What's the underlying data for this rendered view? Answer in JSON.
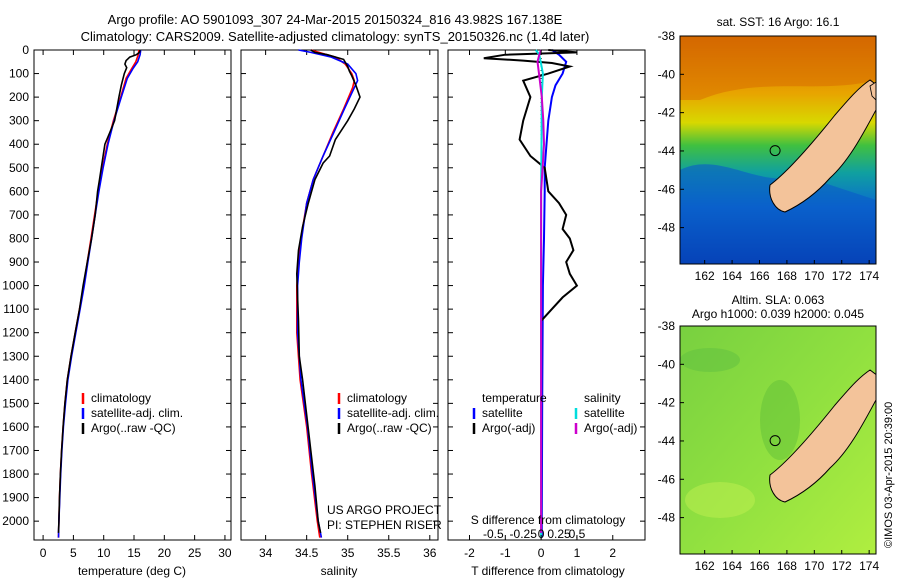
{
  "header": {
    "line1": "Argo profile: AO 5901093_307 24-Mar-2015 20150324_816 43.982S 167.138E",
    "line2": "Climatology: CARS2009. Satellite-adjusted climatology: synTS_20150326.nc (1.4d later)"
  },
  "chart_data": [
    {
      "type": "line",
      "id": "temperature",
      "xlabel": "temperature (deg C)",
      "xlim": [
        -1.5,
        31
      ],
      "xticks": [
        0,
        5,
        10,
        15,
        20,
        25,
        30
      ],
      "ylim": [
        0,
        2080
      ],
      "yticks": [
        0,
        100,
        200,
        300,
        400,
        500,
        600,
        700,
        800,
        900,
        1000,
        1100,
        1200,
        1300,
        1400,
        1500,
        1600,
        1700,
        1800,
        1900,
        2000
      ],
      "reversed_y": true,
      "legend": [
        "climatology",
        "satellite-adj. clim.",
        "Argo(..raw -QC)"
      ],
      "series": [
        {
          "name": "climatology",
          "color": "#ff0000",
          "points": [
            [
              15.8,
              0
            ],
            [
              15.7,
              20
            ],
            [
              15.3,
              50
            ],
            [
              14.6,
              80
            ],
            [
              13.7,
              120
            ],
            [
              12.8,
              200
            ],
            [
              11.6,
              300
            ],
            [
              10.6,
              400
            ],
            [
              9.8,
              500
            ],
            [
              9.1,
              600
            ],
            [
              8.5,
              700
            ],
            [
              7.9,
              800
            ],
            [
              7.3,
              900
            ],
            [
              6.7,
              1000
            ],
            [
              6.0,
              1100
            ],
            [
              5.3,
              1200
            ],
            [
              4.6,
              1300
            ],
            [
              4.0,
              1400
            ],
            [
              3.6,
              1500
            ],
            [
              3.3,
              1600
            ],
            [
              3.05,
              1700
            ],
            [
              2.85,
              1800
            ],
            [
              2.7,
              1900
            ],
            [
              2.6,
              2000
            ],
            [
              2.55,
              2070
            ]
          ]
        },
        {
          "name": "satellite-adj. clim.",
          "color": "#0000ff",
          "points": [
            [
              16.1,
              0
            ],
            [
              16.0,
              20
            ],
            [
              15.6,
              50
            ],
            [
              14.8,
              80
            ],
            [
              13.9,
              120
            ],
            [
              12.9,
              200
            ],
            [
              11.7,
              300
            ],
            [
              10.7,
              400
            ],
            [
              9.9,
              500
            ],
            [
              9.2,
              600
            ],
            [
              8.6,
              700
            ],
            [
              8.0,
              800
            ],
            [
              7.4,
              900
            ],
            [
              6.8,
              1000
            ],
            [
              6.1,
              1100
            ],
            [
              5.4,
              1200
            ],
            [
              4.7,
              1300
            ],
            [
              4.1,
              1400
            ],
            [
              3.7,
              1500
            ],
            [
              3.35,
              1600
            ],
            [
              3.1,
              1700
            ],
            [
              2.9,
              1800
            ],
            [
              2.75,
              1900
            ],
            [
              2.6,
              2000
            ],
            [
              2.55,
              2070
            ]
          ]
        },
        {
          "name": "Argo(..raw -QC)",
          "color": "#000000",
          "points": [
            [
              16.0,
              0
            ],
            [
              15.9,
              10
            ],
            [
              15.4,
              20
            ],
            [
              14.3,
              30
            ],
            [
              13.7,
              45
            ],
            [
              13.5,
              60
            ],
            [
              13.8,
              75
            ],
            [
              13.4,
              100
            ],
            [
              12.9,
              150
            ],
            [
              12.5,
              200
            ],
            [
              11.8,
              300
            ],
            [
              11.0,
              350
            ],
            [
              10.2,
              400
            ],
            [
              9.9,
              450
            ],
            [
              9.6,
              500
            ],
            [
              9.3,
              550
            ],
            [
              9.0,
              600
            ],
            [
              8.6,
              700
            ],
            [
              8.0,
              800
            ],
            [
              7.3,
              900
            ],
            [
              6.6,
              1000
            ],
            [
              6.0,
              1100
            ],
            [
              5.3,
              1200
            ],
            [
              4.6,
              1300
            ],
            [
              4.0,
              1400
            ],
            [
              3.6,
              1500
            ],
            [
              3.3,
              1600
            ],
            [
              3.05,
              1700
            ],
            [
              2.85,
              1800
            ],
            [
              2.7,
              1900
            ],
            [
              2.6,
              2000
            ],
            [
              2.55,
              2050
            ]
          ]
        }
      ]
    },
    {
      "type": "line",
      "id": "salinity",
      "xlabel": "salinity",
      "xlim": [
        33.7,
        36.1
      ],
      "xticks": [
        34,
        34.5,
        35,
        35.5,
        36
      ],
      "ylim": [
        0,
        2080
      ],
      "reversed_y": true,
      "legend": [
        "climatology",
        "satellite-adj. clim.",
        "Argo(..raw -QC)"
      ],
      "annotation": [
        "US ARGO PROJECT",
        "PI: STEPHEN RISER"
      ],
      "series": [
        {
          "name": "climatology",
          "color": "#ff0000",
          "points": [
            [
              34.55,
              0
            ],
            [
              34.65,
              10
            ],
            [
              34.85,
              30
            ],
            [
              34.97,
              60
            ],
            [
              35.05,
              100
            ],
            [
              35.08,
              130
            ],
            [
              35.06,
              160
            ],
            [
              34.95,
              250
            ],
            [
              34.82,
              350
            ],
            [
              34.7,
              450
            ],
            [
              34.58,
              550
            ],
            [
              34.5,
              650
            ],
            [
              34.43,
              800
            ],
            [
              34.4,
              900
            ],
            [
              34.38,
              1000
            ],
            [
              34.38,
              1200
            ],
            [
              34.42,
              1400
            ],
            [
              34.5,
              1600
            ],
            [
              34.56,
              1800
            ],
            [
              34.63,
              2000
            ],
            [
              34.66,
              2070
            ]
          ]
        },
        {
          "name": "satellite-adj. clim.",
          "color": "#0000ff",
          "points": [
            [
              34.4,
              0
            ],
            [
              34.55,
              10
            ],
            [
              34.8,
              30
            ],
            [
              35.0,
              60
            ],
            [
              35.1,
              100
            ],
            [
              35.12,
              130
            ],
            [
              35.08,
              160
            ],
            [
              34.96,
              250
            ],
            [
              34.83,
              350
            ],
            [
              34.7,
              450
            ],
            [
              34.58,
              550
            ],
            [
              34.5,
              650
            ],
            [
              34.44,
              800
            ],
            [
              34.41,
              900
            ],
            [
              34.39,
              1000
            ],
            [
              34.39,
              1200
            ],
            [
              34.43,
              1400
            ],
            [
              34.51,
              1600
            ],
            [
              34.57,
              1800
            ],
            [
              34.64,
              2000
            ],
            [
              34.68,
              2070
            ]
          ]
        },
        {
          "name": "Argo(..raw -QC)",
          "color": "#000000",
          "points": [
            [
              34.55,
              0
            ],
            [
              34.6,
              10
            ],
            [
              34.75,
              20
            ],
            [
              34.95,
              40
            ],
            [
              35.0,
              70
            ],
            [
              35.02,
              90
            ],
            [
              35.05,
              110
            ],
            [
              35.1,
              150
            ],
            [
              35.15,
              200
            ],
            [
              35.08,
              250
            ],
            [
              35.0,
              300
            ],
            [
              34.85,
              380
            ],
            [
              34.78,
              450
            ],
            [
              34.7,
              480
            ],
            [
              34.6,
              550
            ],
            [
              34.52,
              650
            ],
            [
              34.45,
              750
            ],
            [
              34.4,
              850
            ],
            [
              34.38,
              950
            ],
            [
              34.39,
              1050
            ],
            [
              34.4,
              1150
            ],
            [
              34.41,
              1300
            ],
            [
              34.45,
              1400
            ],
            [
              34.5,
              1550
            ],
            [
              34.55,
              1700
            ],
            [
              34.6,
              1850
            ],
            [
              34.64,
              2000
            ],
            [
              34.67,
              2050
            ]
          ]
        }
      ]
    },
    {
      "type": "line",
      "id": "difference",
      "xlabel": "T difference from climatology",
      "xlabel_top": "S difference from climatology",
      "xlim": [
        -2.6,
        2.9
      ],
      "xticks": [
        -2,
        -1,
        0,
        1,
        2
      ],
      "xticks_s": [
        "-0.5",
        "-0.25",
        "0",
        "0.25",
        "0.5"
      ],
      "ylim": [
        0,
        2080
      ],
      "reversed_y": true,
      "legend_left_title": "temperature",
      "legend_right_title": "salinity",
      "legend_left": [
        "satellite",
        "Argo(-adj)"
      ],
      "legend_right": [
        "satellite",
        "Argo(-adj)"
      ],
      "series": [
        {
          "name": "T satellite",
          "color": "#0000ff",
          "points": [
            [
              0.3,
              0
            ],
            [
              0.5,
              20
            ],
            [
              0.7,
              50
            ],
            [
              0.6,
              100
            ],
            [
              0.4,
              150
            ],
            [
              0.3,
              200
            ],
            [
              0.2,
              300
            ],
            [
              0.15,
              400
            ],
            [
              0.1,
              500
            ],
            [
              0.1,
              600
            ],
            [
              0.08,
              800
            ],
            [
              0.05,
              1000
            ],
            [
              0.03,
              1500
            ],
            [
              0.02,
              2000
            ],
            [
              0.02,
              2070
            ]
          ]
        },
        {
          "name": "T Argo(-adj)",
          "color": "#000000",
          "points": [
            [
              0.2,
              0
            ],
            [
              1.0,
              10
            ],
            [
              -1.0,
              20
            ],
            [
              -1.6,
              35
            ],
            [
              -0.5,
              45
            ],
            [
              0.3,
              55
            ],
            [
              0.8,
              70
            ],
            [
              0.2,
              100
            ],
            [
              -0.5,
              130
            ],
            [
              -0.3,
              200
            ],
            [
              -0.5,
              300
            ],
            [
              -0.6,
              380
            ],
            [
              -0.3,
              450
            ],
            [
              0.1,
              500
            ],
            [
              0.2,
              600
            ],
            [
              0.5,
              650
            ],
            [
              0.7,
              700
            ],
            [
              0.6,
              760
            ],
            [
              0.8,
              800
            ],
            [
              0.9,
              850
            ],
            [
              0.7,
              900
            ],
            [
              0.8,
              950
            ],
            [
              1.0,
              1000
            ],
            [
              0.6,
              1050
            ],
            [
              0.3,
              1100
            ],
            [
              0.0,
              1150
            ],
            [
              0.0,
              1500
            ],
            [
              0.0,
              2000
            ],
            [
              0.0,
              2050
            ]
          ]
        },
        {
          "name": "S satellite",
          "color": "#00dddd",
          "points": [
            [
              -0.15,
              0
            ],
            [
              -0.05,
              20
            ],
            [
              0.0,
              60
            ],
            [
              0.05,
              100
            ],
            [
              0.02,
              200
            ],
            [
              0.01,
              400
            ],
            [
              0.0,
              600
            ],
            [
              0.0,
              1000
            ],
            [
              0.0,
              1500
            ],
            [
              0.0,
              2000
            ],
            [
              0.0,
              2070
            ]
          ]
        },
        {
          "name": "S Argo(-adj)",
          "color": "#cc00cc",
          "points": [
            [
              0.0,
              0
            ],
            [
              -0.05,
              20
            ],
            [
              -0.1,
              50
            ],
            [
              -0.06,
              100
            ],
            [
              0.02,
              200
            ],
            [
              0.06,
              300
            ],
            [
              0.08,
              400
            ],
            [
              0.04,
              500
            ],
            [
              0.0,
              600
            ],
            [
              0.0,
              1000
            ],
            [
              0.0,
              1500
            ],
            [
              0.0,
              2000
            ],
            [
              0.0,
              2050
            ]
          ]
        }
      ]
    },
    {
      "type": "heatmap",
      "id": "sst-map",
      "title": "sat. SST: 16 Argo: 16.1",
      "xlim": [
        160.2,
        174.5
      ],
      "ylim": [
        -49.9,
        -38
      ],
      "xticks": [
        162,
        164,
        166,
        168,
        170,
        172,
        174
      ],
      "yticks": [
        -38,
        -40,
        -42,
        -44,
        -46,
        -48
      ],
      "marker": [
        167.138,
        -43.982
      ]
    },
    {
      "type": "heatmap",
      "id": "sla-map",
      "title": "Altim. SLA: 0.063",
      "subtitle": "Argo h1000: 0.039 h2000: 0.045",
      "xlim": [
        160.2,
        174.5
      ],
      "ylim": [
        -49.9,
        -38
      ],
      "xticks": [
        162,
        164,
        166,
        168,
        170,
        172,
        174
      ],
      "yticks": [
        -38,
        -40,
        -42,
        -44,
        -46,
        -48
      ],
      "marker": [
        167.138,
        -43.982
      ]
    }
  ],
  "credit": "©IMOS 03-Apr-2015 20:39:00"
}
